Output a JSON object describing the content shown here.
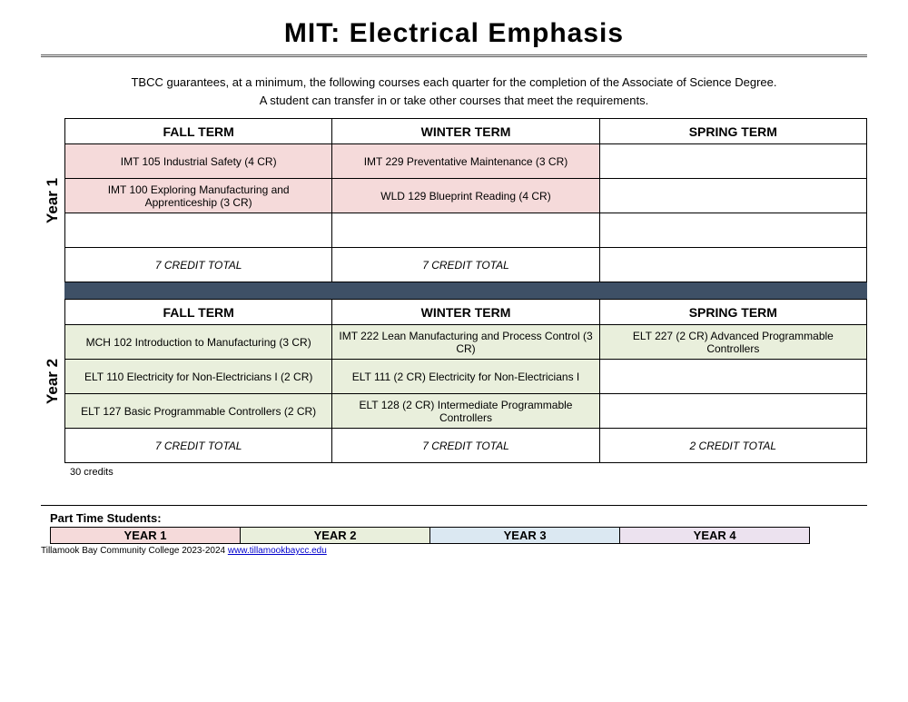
{
  "title": "MIT: Electrical Emphasis",
  "intro1": "TBCC guarantees, at a minimum, the following courses each quarter for the completion of the Associate of Science Degree.",
  "intro2": "A student can transfer in or take other courses that meet the requirements.",
  "terms": {
    "fall": "FALL TERM",
    "winter": "WINTER TERM",
    "spring": "SPRING TERM"
  },
  "year1": {
    "label": "Year 1",
    "rows": [
      {
        "fall": "IMT 105 Industrial Safety (4 CR)",
        "winter": "IMT 229 Preventative Maintenance (3 CR)",
        "spring": ""
      },
      {
        "fall": "IMT 100 Exploring Manufacturing and Apprenticeship (3 CR)",
        "winter": "WLD 129 Blueprint Reading (4 CR)",
        "spring": ""
      },
      {
        "fall": "",
        "winter": "",
        "spring": ""
      }
    ],
    "totals": {
      "fall": "7 CREDIT TOTAL",
      "winter": "7 CREDIT TOTAL",
      "spring": ""
    }
  },
  "year2": {
    "label": "Year 2",
    "rows": [
      {
        "fall": "MCH 102 Introduction to Manufacturing (3 CR)",
        "winter": "IMT 222 Lean Manufacturing and Process Control (3 CR)",
        "spring": "ELT 227 (2 CR) Advanced Programmable Controllers"
      },
      {
        "fall": "ELT 110 Electricity for Non-Electricians I (2 CR)",
        "winter": "ELT 111 (2 CR) Electricity for Non-Electricians I",
        "spring": ""
      },
      {
        "fall": "ELT 127 Basic Programmable Controllers (2 CR)",
        "winter": "ELT 128 (2 CR) Intermediate Programmable Controllers",
        "spring": ""
      }
    ],
    "totals": {
      "fall": "7 CREDIT TOTAL",
      "winter": "7 CREDIT TOTAL",
      "spring": "2 CREDIT TOTAL"
    }
  },
  "credits_note": "30 credits",
  "parttime": {
    "label": "Part Time Students:",
    "years": [
      "YEAR 1",
      "YEAR 2",
      "YEAR 3",
      "YEAR 4"
    ]
  },
  "footer": {
    "text": "Tillamook Bay Community College 2023-2024 ",
    "link_text": "www.tillamookbaycc.edu",
    "link_href": "http://www.tillamookbaycc.edu"
  },
  "colors": {
    "year1_cell": "#f5dada",
    "year2_cell": "#e9efdc",
    "gap_bar": "#3e5066",
    "legend": [
      "#f5dada",
      "#e9efdc",
      "#dbe8f2",
      "#ece2ef"
    ]
  }
}
